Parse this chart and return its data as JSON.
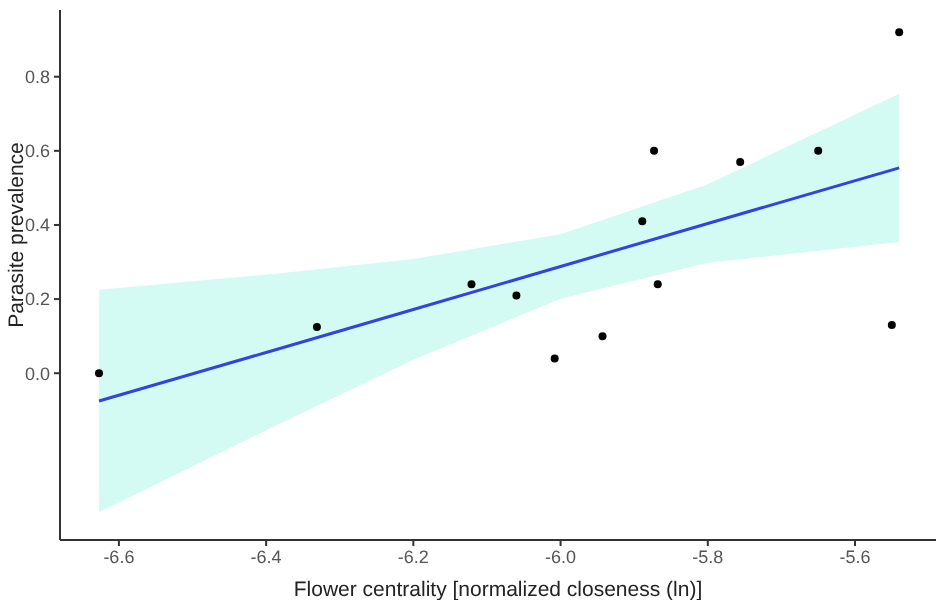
{
  "chart_data": {
    "type": "scatter",
    "xlabel": "Flower centrality [normalized closeness (ln)]",
    "ylabel": "Parasite prevalence",
    "xlim": [
      -6.68,
      -5.49
    ],
    "ylim": [
      -0.45,
      0.98
    ],
    "xticks": [
      -6.6,
      -6.4,
      -6.2,
      {
        "value": -6,
        "label": "-6.0"
      },
      -5.8,
      -5.6
    ],
    "yticks": [
      {
        "value": 0,
        "label": "0.0"
      },
      0.2,
      0.4,
      0.6,
      0.8
    ],
    "grid": false,
    "legend": false,
    "series": [
      {
        "marker": "circle",
        "color": "#000000",
        "x": [
          -6.627,
          -6.331,
          -6.121,
          -6.06,
          -6.008,
          -5.943,
          -5.868,
          -5.889,
          -5.873,
          -5.756,
          -5.65,
          -5.54,
          -5.55
        ],
        "values": [
          0,
          0.125,
          0.24,
          0.21,
          0.04,
          0.1,
          0.24,
          0.41,
          0.6,
          0.57,
          0.6,
          0.92,
          0.13
        ]
      },
      {
        "type": "line",
        "color": "#3344dd",
        "x": [
          -6.627,
          -6.4,
          -6.2,
          -6.0,
          -5.8,
          -5.54
        ],
        "values": [
          -0.075,
          0.056,
          0.172,
          0.288,
          0.404,
          0.554
        ],
        "lower": [
          -0.375,
          -0.154,
          0.036,
          0.201,
          0.298,
          0.354
        ],
        "upper": [
          0.225,
          0.266,
          0.308,
          0.375,
          0.51,
          0.754
        ],
        "line_style": "solid"
      }
    ]
  }
}
